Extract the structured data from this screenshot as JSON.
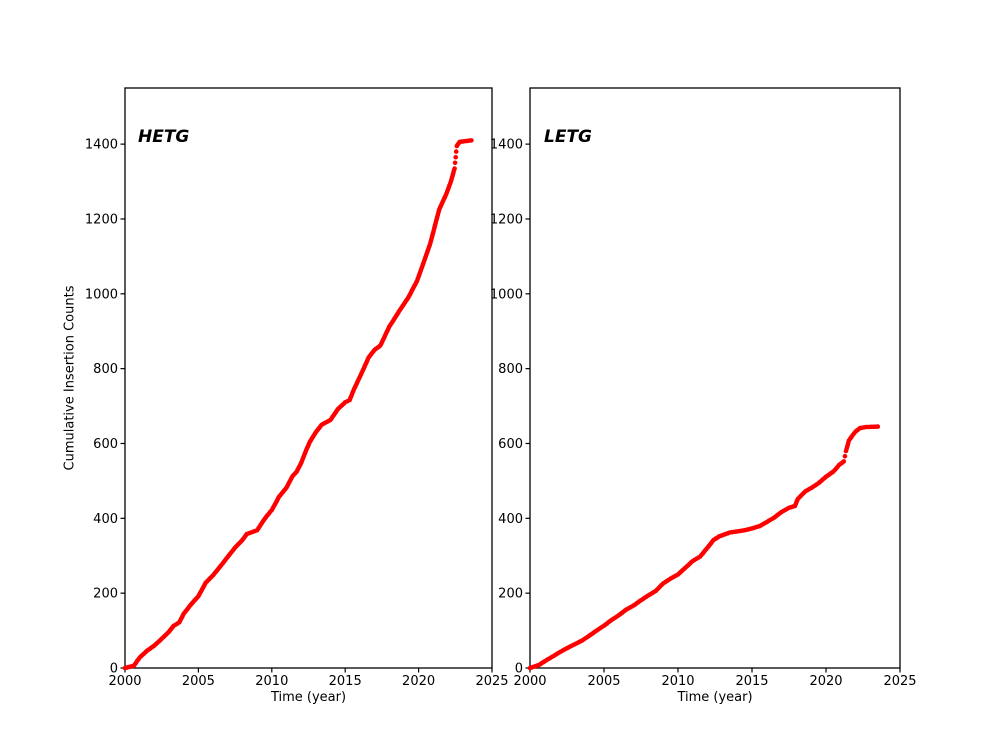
{
  "figure": {
    "background": "#ffffff",
    "axis_color": "#000000",
    "ylabel": "Cumulative Insertion Counts",
    "xlabel": "Time (year)"
  },
  "chart_data": [
    {
      "type": "scatter",
      "label": "HETG",
      "marker": "dot",
      "marker_color": "#ff0000",
      "xlabel": "Time (year)",
      "ylabel": "Cumulative Insertion Counts",
      "xlim": [
        2000,
        2025
      ],
      "ylim": [
        0,
        1550
      ],
      "xticks": [
        2000,
        2005,
        2010,
        2015,
        2020,
        2025
      ],
      "yticks": [
        0,
        200,
        400,
        600,
        800,
        1000,
        1200,
        1400
      ],
      "grid": false,
      "final_count": 1410,
      "points": [
        [
          2000.0,
          0
        ],
        [
          2000.6,
          6
        ],
        [
          2001.0,
          28
        ],
        [
          2001.5,
          46
        ],
        [
          2002.0,
          60
        ],
        [
          2002.5,
          78
        ],
        [
          2003.0,
          97
        ],
        [
          2003.3,
          112
        ],
        [
          2003.7,
          122
        ],
        [
          2004.0,
          145
        ],
        [
          2004.5,
          170
        ],
        [
          2005.0,
          192
        ],
        [
          2005.5,
          228
        ],
        [
          2006.0,
          248
        ],
        [
          2006.5,
          272
        ],
        [
          2007.0,
          297
        ],
        [
          2007.5,
          322
        ],
        [
          2008.0,
          342
        ],
        [
          2008.3,
          358
        ],
        [
          2009.0,
          368
        ],
        [
          2009.4,
          392
        ],
        [
          2009.7,
          408
        ],
        [
          2010.0,
          422
        ],
        [
          2010.5,
          458
        ],
        [
          2011.0,
          482
        ],
        [
          2011.4,
          512
        ],
        [
          2011.7,
          525
        ],
        [
          2012.0,
          548
        ],
        [
          2012.3,
          578
        ],
        [
          2012.6,
          605
        ],
        [
          2013.0,
          630
        ],
        [
          2013.4,
          650
        ],
        [
          2014.0,
          663
        ],
        [
          2014.5,
          692
        ],
        [
          2015.0,
          710
        ],
        [
          2015.3,
          716
        ],
        [
          2015.6,
          745
        ],
        [
          2016.2,
          795
        ],
        [
          2016.6,
          830
        ],
        [
          2017.0,
          850
        ],
        [
          2017.4,
          862
        ],
        [
          2018.0,
          912
        ],
        [
          2018.3,
          930
        ],
        [
          2018.7,
          955
        ],
        [
          2019.3,
          990
        ],
        [
          2019.9,
          1035
        ],
        [
          2020.4,
          1090
        ],
        [
          2020.8,
          1135
        ],
        [
          2021.1,
          1180
        ],
        [
          2021.4,
          1225
        ],
        [
          2021.9,
          1268
        ],
        [
          2022.2,
          1300
        ],
        [
          2022.45,
          1335
        ],
        [
          2022.6,
          1395
        ],
        [
          2022.8,
          1406
        ],
        [
          2023.6,
          1410
        ]
      ]
    },
    {
      "type": "scatter",
      "label": "LETG",
      "marker": "dot",
      "marker_color": "#ff0000",
      "xlabel": "Time (year)",
      "ylabel": "",
      "xlim": [
        2000,
        2025
      ],
      "ylim": [
        0,
        1550
      ],
      "xticks": [
        2000,
        2005,
        2010,
        2015,
        2020,
        2025
      ],
      "yticks": [
        0,
        200,
        400,
        600,
        800,
        1000,
        1200,
        1400
      ],
      "grid": false,
      "final_count": 645,
      "points": [
        [
          2000.0,
          0
        ],
        [
          2000.6,
          8
        ],
        [
          2001.0,
          18
        ],
        [
          2001.5,
          30
        ],
        [
          2002.0,
          42
        ],
        [
          2002.5,
          53
        ],
        [
          2003.0,
          63
        ],
        [
          2003.5,
          73
        ],
        [
          2004.0,
          86
        ],
        [
          2004.5,
          100
        ],
        [
          2005.0,
          113
        ],
        [
          2005.5,
          128
        ],
        [
          2006.0,
          141
        ],
        [
          2006.5,
          156
        ],
        [
          2007.0,
          167
        ],
        [
          2007.5,
          181
        ],
        [
          2008.0,
          194
        ],
        [
          2008.5,
          206
        ],
        [
          2009.0,
          226
        ],
        [
          2009.5,
          239
        ],
        [
          2010.0,
          250
        ],
        [
          2010.5,
          268
        ],
        [
          2011.0,
          286
        ],
        [
          2011.5,
          298
        ],
        [
          2012.0,
          322
        ],
        [
          2012.4,
          342
        ],
        [
          2012.8,
          352
        ],
        [
          2013.5,
          362
        ],
        [
          2014.5,
          368
        ],
        [
          2015.0,
          373
        ],
        [
          2015.5,
          379
        ],
        [
          2016.0,
          390
        ],
        [
          2016.5,
          402
        ],
        [
          2017.0,
          417
        ],
        [
          2017.5,
          428
        ],
        [
          2017.9,
          433
        ],
        [
          2018.1,
          452
        ],
        [
          2018.6,
          472
        ],
        [
          2019.0,
          481
        ],
        [
          2019.5,
          494
        ],
        [
          2020.0,
          511
        ],
        [
          2020.5,
          525
        ],
        [
          2020.9,
          543
        ],
        [
          2021.2,
          552
        ],
        [
          2021.35,
          580
        ],
        [
          2021.55,
          608
        ],
        [
          2021.8,
          622
        ],
        [
          2022.0,
          632
        ],
        [
          2022.3,
          641
        ],
        [
          2022.7,
          644
        ],
        [
          2023.5,
          645
        ]
      ]
    }
  ]
}
